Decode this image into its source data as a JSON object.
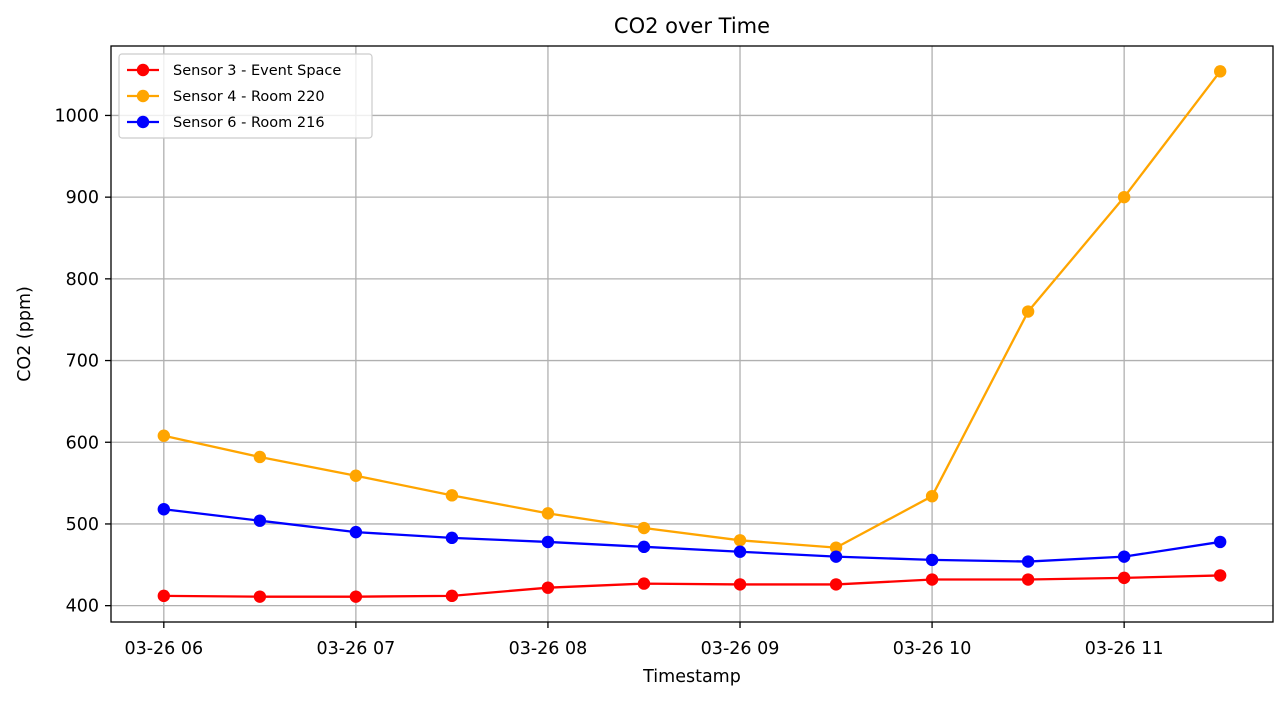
{
  "chart_data": {
    "type": "line",
    "title": "CO2 over Time",
    "xlabel": "Timestamp",
    "ylabel": "CO2 (ppm)",
    "x": [
      "03-26 06:00",
      "03-26 06:30",
      "03-26 07:00",
      "03-26 07:30",
      "03-26 08:00",
      "03-26 08:30",
      "03-26 09:00",
      "03-26 09:30",
      "03-26 10:00",
      "03-26 10:30",
      "03-26 11:00",
      "03-26 11:30"
    ],
    "x_ticks": [
      "03-26 06",
      "03-26 07",
      "03-26 08",
      "03-26 09",
      "03-26 10",
      "03-26 11"
    ],
    "y_ticks": [
      400,
      500,
      600,
      700,
      800,
      900,
      1000
    ],
    "ylim": [
      380,
      1085
    ],
    "grid": true,
    "legend_position": "top-left",
    "series": [
      {
        "name": "Sensor 3 - Event Space",
        "color": "#ff0000",
        "marker": "circle",
        "values": [
          412,
          411,
          411,
          412,
          422,
          427,
          426,
          426,
          432,
          432,
          434,
          437
        ]
      },
      {
        "name": "Sensor 4 - Room 220",
        "color": "#ffa500",
        "marker": "circle",
        "values": [
          608,
          582,
          559,
          535,
          513,
          495,
          480,
          471,
          534,
          760,
          900,
          1054
        ]
      },
      {
        "name": "Sensor 6 - Room 216",
        "color": "#0000ff",
        "marker": "circle",
        "values": [
          518,
          504,
          490,
          483,
          478,
          472,
          466,
          460,
          456,
          454,
          460,
          478
        ]
      }
    ]
  }
}
